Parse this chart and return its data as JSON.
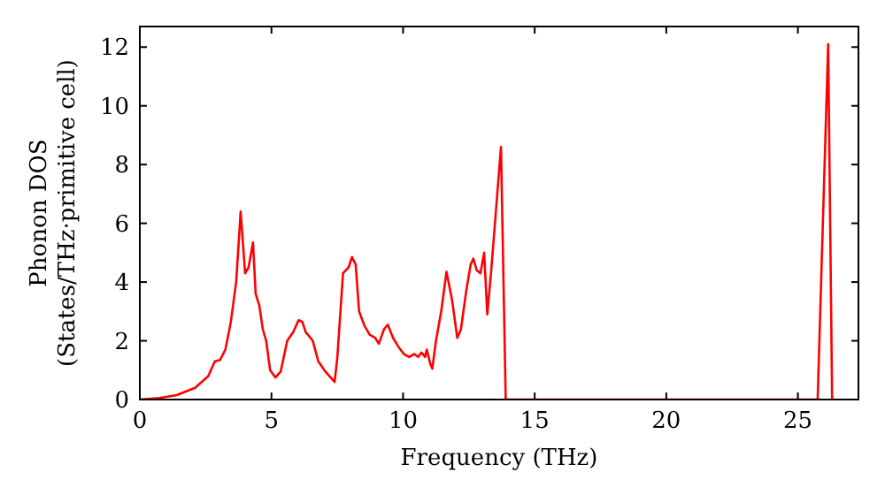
{
  "chart_data": {
    "type": "line",
    "xlabel": "Frequency (THz)",
    "ylabel": "Phonon DOS\n(States/THz·primitive cell)",
    "xlim": [
      0,
      27.3
    ],
    "ylim": [
      0,
      12.7
    ],
    "xticks": [
      0,
      5,
      10,
      15,
      20,
      25
    ],
    "yticks": [
      0,
      2,
      4,
      6,
      8,
      10,
      12
    ],
    "grid": false,
    "series": [
      {
        "color": "#ff0000",
        "x": [
          0,
          0.75,
          1.4,
          2.1,
          2.6,
          2.85,
          3.05,
          3.25,
          3.45,
          3.66,
          3.83,
          4.0,
          4.13,
          4.3,
          4.4,
          4.54,
          4.67,
          4.8,
          4.95,
          5.15,
          5.35,
          5.6,
          5.83,
          6.03,
          6.17,
          6.3,
          6.57,
          6.78,
          7.05,
          7.4,
          7.5,
          7.72,
          7.93,
          8.06,
          8.2,
          8.33,
          8.54,
          8.74,
          8.94,
          9.08,
          9.28,
          9.42,
          9.62,
          9.82,
          10.03,
          10.23,
          10.43,
          10.57,
          10.7,
          10.84,
          10.9,
          11.04,
          11.11,
          11.25,
          11.45,
          11.65,
          11.86,
          12.06,
          12.2,
          12.4,
          12.57,
          12.67,
          12.8,
          12.94,
          13.08,
          13.2,
          13.35,
          13.72,
          13.9,
          25.75,
          26.15,
          26.3
        ],
        "values": [
          0,
          0.05,
          0.15,
          0.4,
          0.8,
          1.3,
          1.35,
          1.7,
          2.6,
          4.0,
          6.4,
          4.3,
          4.5,
          5.35,
          3.6,
          3.2,
          2.4,
          2.0,
          1.0,
          0.75,
          0.95,
          2.0,
          2.3,
          2.7,
          2.65,
          2.3,
          2.0,
          1.3,
          0.95,
          0.6,
          1.4,
          4.3,
          4.5,
          4.85,
          4.6,
          3.0,
          2.5,
          2.2,
          2.1,
          1.9,
          2.4,
          2.55,
          2.1,
          1.8,
          1.55,
          1.45,
          1.55,
          1.45,
          1.6,
          1.45,
          1.7,
          1.2,
          1.05,
          2.0,
          3.0,
          4.35,
          3.4,
          2.1,
          2.4,
          3.7,
          4.6,
          4.8,
          4.4,
          4.3,
          5.0,
          2.9,
          4.4,
          8.6,
          0,
          0,
          12.1,
          0
        ]
      }
    ]
  }
}
